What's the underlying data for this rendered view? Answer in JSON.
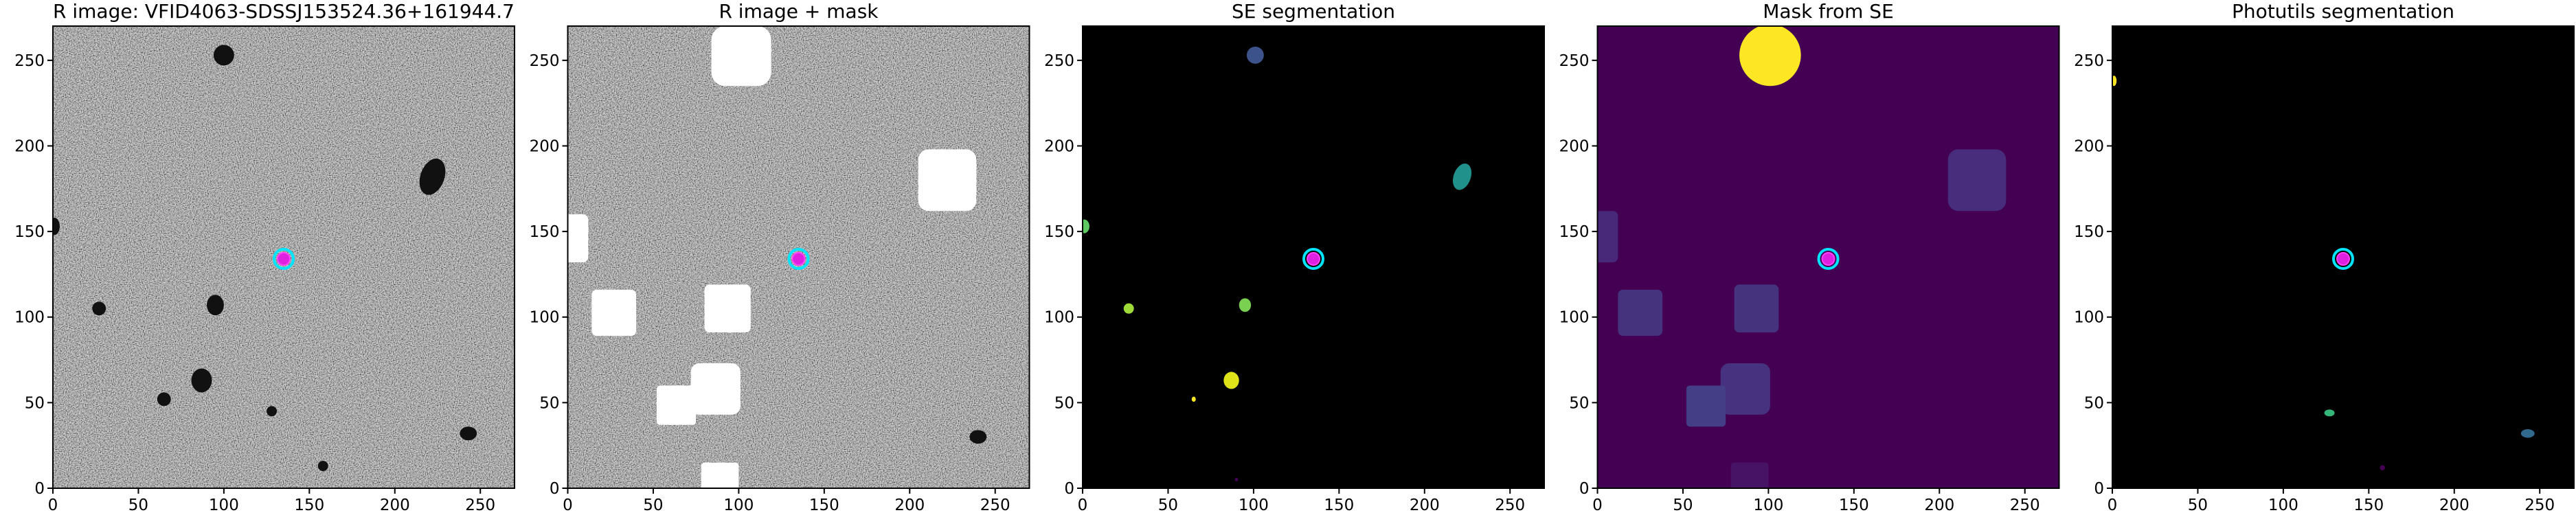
{
  "chart_data": [
    {
      "type": "image",
      "title": "R image: VFID4063-SDSSJ153524.36+161944.7",
      "xlim": [
        0,
        270
      ],
      "ylim": [
        0,
        270
      ],
      "xticks": [
        0,
        50,
        100,
        150,
        200,
        250
      ],
      "yticks": [
        0,
        50,
        100,
        150,
        200,
        250
      ],
      "x": [
        135
      ],
      "y": [
        134
      ]
    },
    {
      "type": "image",
      "title": "R image + mask",
      "xlim": [
        0,
        270
      ],
      "ylim": [
        0,
        270
      ],
      "xticks": [
        0,
        50,
        100,
        150,
        200,
        250
      ],
      "yticks": [
        0,
        50,
        100,
        150,
        200,
        250
      ],
      "x": [
        135
      ],
      "y": [
        134
      ]
    },
    {
      "type": "image",
      "title": "SE segmentation",
      "xlim": [
        0,
        270
      ],
      "ylim": [
        0,
        270
      ],
      "xticks": [
        0,
        50,
        100,
        150,
        200,
        250
      ],
      "yticks": [
        0,
        50,
        100,
        150,
        200,
        250
      ],
      "x": [
        135
      ],
      "y": [
        134
      ]
    },
    {
      "type": "image",
      "title": "Mask from SE",
      "xlim": [
        0,
        270
      ],
      "ylim": [
        0,
        270
      ],
      "xticks": [
        0,
        50,
        100,
        150,
        200,
        250
      ],
      "yticks": [
        0,
        50,
        100,
        150,
        200,
        250
      ],
      "x": [
        135
      ],
      "y": [
        134
      ]
    },
    {
      "type": "image",
      "title": "Photutils segmentation",
      "xlim": [
        0,
        270
      ],
      "ylim": [
        0,
        270
      ],
      "xticks": [
        0,
        50,
        100,
        150,
        200,
        250
      ],
      "yticks": [
        0,
        50,
        100,
        150,
        200,
        250
      ],
      "x": [
        135
      ],
      "y": [
        134
      ]
    }
  ]
}
